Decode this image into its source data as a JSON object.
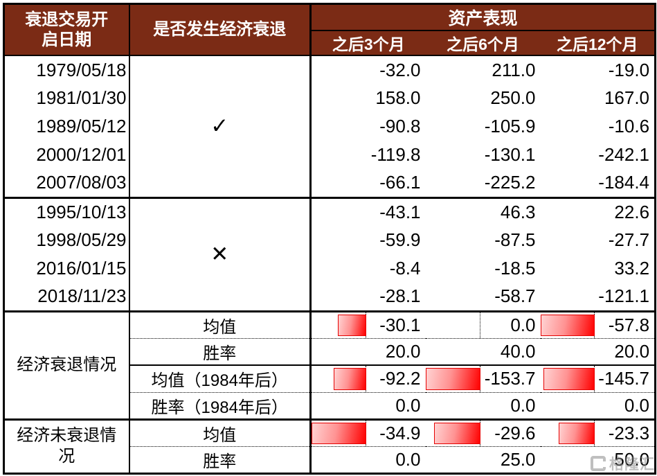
{
  "table": {
    "header": {
      "date_col": "衰退交易开启日期",
      "recession_col": "是否发生经济衰退",
      "assets_group": "资产表现",
      "period_cols": [
        "之后3个月",
        "之后6个月",
        "之后12个月"
      ]
    },
    "date_groups": [
      {
        "mark": "✓",
        "rows": [
          {
            "date": "1979/05/18",
            "values": [
              "-32.0",
              "211.0",
              "-19.0"
            ]
          },
          {
            "date": "1981/01/30",
            "values": [
              "158.0",
              "250.0",
              "167.0"
            ]
          },
          {
            "date": "1989/05/12",
            "values": [
              "-90.8",
              "-105.9",
              "-10.6"
            ]
          },
          {
            "date": "2000/12/01",
            "values": [
              "-119.8",
              "-130.1",
              "-242.1"
            ]
          },
          {
            "date": "2007/08/03",
            "values": [
              "-66.1",
              "-225.2",
              "-184.4"
            ]
          }
        ]
      },
      {
        "mark": "✕",
        "rows": [
          {
            "date": "1995/10/13",
            "values": [
              "-43.1",
              "46.3",
              "22.6"
            ]
          },
          {
            "date": "1998/05/29",
            "values": [
              "-59.9",
              "-87.5",
              "-27.7"
            ]
          },
          {
            "date": "2016/01/15",
            "values": [
              "-8.4",
              "-18.5",
              "33.2"
            ]
          },
          {
            "date": "2018/11/23",
            "values": [
              "-28.1",
              "-58.7",
              "-121.1"
            ]
          }
        ]
      }
    ],
    "summary_groups": [
      {
        "label": "经济衰退情况",
        "rows": [
          {
            "name": "均值",
            "values": [
              "-30.1",
              "0.0",
              "-57.8"
            ],
            "bars": true,
            "sep": "section"
          },
          {
            "name": "胜率",
            "values": [
              "20.0",
              "40.0",
              "20.0"
            ],
            "bars": false,
            "sep": "dotted"
          },
          {
            "name": "均值（1984年后）",
            "values": [
              "-92.2",
              "-153.7",
              "-145.7"
            ],
            "bars": true,
            "sep": "solid"
          },
          {
            "name": "胜率（1984年后）",
            "values": [
              "0.0",
              "0.0",
              "0.0"
            ],
            "bars": false,
            "sep": "dotted"
          }
        ]
      },
      {
        "label": "经济未衰退情况",
        "rows": [
          {
            "name": "均值",
            "values": [
              "-34.9",
              "-29.6",
              "-23.3"
            ],
            "bars": true,
            "sep": "section"
          },
          {
            "name": "胜率",
            "values": [
              "0.0",
              "25.0",
              "50.0"
            ],
            "bars": false,
            "sep": "dotted"
          }
        ]
      }
    ]
  },
  "watermark": {
    "text": "格隆汇"
  },
  "colors": {
    "header_bg": "#7B2B15",
    "header_text": "#FFFFFF",
    "bar_gradient_start": "#FFD3D3",
    "bar_gradient_end": "#FF0000",
    "bar_border": "#E60000"
  },
  "chart_data": {
    "type": "table",
    "title": "资产表现",
    "column_groups": [
      {
        "label": "资产表现",
        "spans": [
          "之后3个月",
          "之后6个月",
          "之后12个月"
        ]
      }
    ],
    "columns": [
      "衰退交易开启日期",
      "是否发生经济衰退",
      "之后3个月",
      "之后6个月",
      "之后12个月"
    ],
    "rows": [
      [
        "1979/05/18",
        "✓",
        -32.0,
        211.0,
        -19.0
      ],
      [
        "1981/01/30",
        "✓",
        158.0,
        250.0,
        167.0
      ],
      [
        "1989/05/12",
        "✓",
        -90.8,
        -105.9,
        -10.6
      ],
      [
        "2000/12/01",
        "✓",
        -119.8,
        -130.1,
        -242.1
      ],
      [
        "2007/08/03",
        "✓",
        -66.1,
        -225.2,
        -184.4
      ],
      [
        "1995/10/13",
        "✕",
        -43.1,
        46.3,
        22.6
      ],
      [
        "1998/05/29",
        "✕",
        -59.9,
        -87.5,
        -27.7
      ],
      [
        "2016/01/15",
        "✕",
        -8.4,
        -18.5,
        33.2
      ],
      [
        "2018/11/23",
        "✕",
        -28.1,
        -58.7,
        -121.1
      ],
      [
        "经济衰退情况",
        "均值",
        -30.1,
        0.0,
        -57.8
      ],
      [
        "经济衰退情况",
        "胜率",
        20.0,
        40.0,
        20.0
      ],
      [
        "经济衰退情况",
        "均值（1984年后）",
        -92.2,
        -153.7,
        -145.7
      ],
      [
        "经济衰退情况",
        "胜率（1984年后）",
        0.0,
        0.0,
        0.0
      ],
      [
        "经济未衰退情况",
        "均值",
        -34.9,
        -29.6,
        -23.3
      ],
      [
        "经济未衰退情况",
        "胜率",
        0.0,
        25.0,
        50.0
      ]
    ],
    "notes": "负均值行带红色渐变数据条（右端对齐虚线轴，向左延伸，长度按各行最大绝对值缩放）"
  }
}
